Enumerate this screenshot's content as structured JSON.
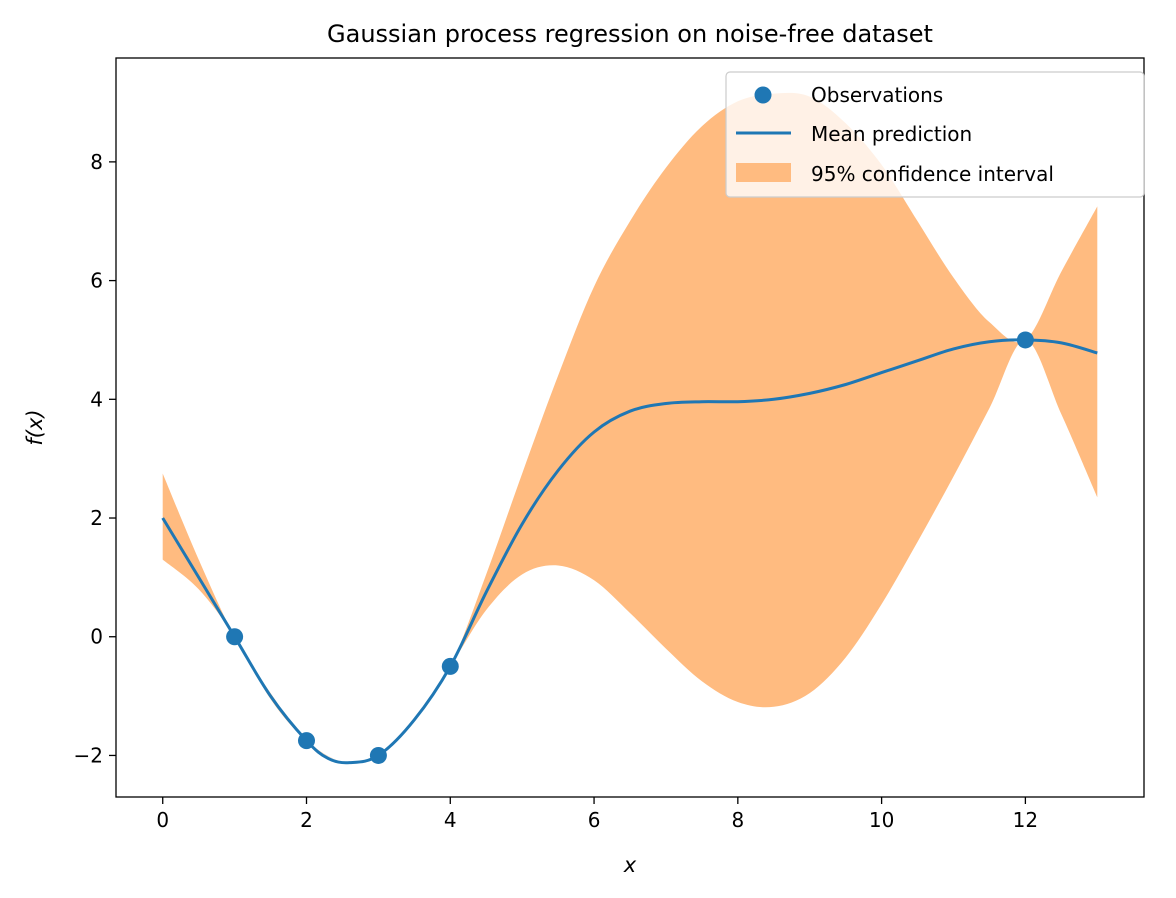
{
  "chart_data": {
    "type": "line",
    "title": "Gaussian process regression on noise-free dataset",
    "xlabel": "x",
    "ylabel": "f(x)",
    "xlim": [
      -0.65,
      13.65
    ],
    "ylim": [
      -2.7,
      9.75
    ],
    "x_ticks": [
      0,
      2,
      4,
      6,
      8,
      10,
      12
    ],
    "y_ticks": [
      -2,
      0,
      2,
      4,
      6,
      8
    ],
    "grid": false,
    "legend_position": "top-right",
    "colors": {
      "observations": "#1f77b4",
      "mean": "#1f77b4",
      "interval": "#ffbb80"
    },
    "series": [
      {
        "name": "Observations",
        "kind": "scatter",
        "x": [
          1,
          2,
          3,
          4,
          12
        ],
        "y": [
          0.0,
          -1.75,
          -2.0,
          -0.5,
          5.0
        ]
      },
      {
        "name": "Mean prediction",
        "kind": "line",
        "x": [
          0,
          0.5,
          1,
          1.5,
          2,
          2.3,
          2.6,
          3,
          3.5,
          4,
          4.5,
          5,
          5.5,
          6,
          6.5,
          7,
          7.5,
          8,
          8.5,
          9,
          9.5,
          10,
          10.5,
          11,
          11.5,
          12,
          12.5,
          13
        ],
        "y": [
          2.0,
          1.0,
          0.0,
          -1.0,
          -1.75,
          -2.05,
          -2.12,
          -2.0,
          -1.4,
          -0.5,
          0.75,
          1.9,
          2.8,
          3.45,
          3.8,
          3.93,
          3.96,
          3.96,
          4.0,
          4.1,
          4.25,
          4.45,
          4.65,
          4.85,
          4.97,
          5.0,
          4.95,
          4.78
        ]
      },
      {
        "name": "95% confidence interval",
        "kind": "band",
        "x": [
          0,
          0.5,
          1,
          1.5,
          2,
          2.5,
          3,
          3.5,
          4,
          4.5,
          5,
          5.5,
          6,
          6.5,
          7,
          7.5,
          8,
          8.5,
          9,
          9.5,
          10,
          10.5,
          11,
          11.5,
          12,
          12.5,
          13
        ],
        "lower": [
          1.3,
          0.8,
          0.0,
          -1.05,
          -1.75,
          -2.1,
          -2.0,
          -1.4,
          -0.5,
          0.45,
          1.05,
          1.2,
          0.95,
          0.4,
          -0.2,
          -0.75,
          -1.1,
          -1.18,
          -0.95,
          -0.35,
          0.55,
          1.6,
          2.7,
          3.85,
          5.0,
          3.75,
          2.35
        ],
        "upper": [
          2.75,
          1.3,
          0.0,
          -0.95,
          -1.75,
          -2.1,
          -2.0,
          -1.4,
          -0.5,
          1.05,
          2.75,
          4.4,
          5.9,
          7.0,
          7.9,
          8.6,
          9.02,
          9.15,
          9.1,
          8.65,
          7.95,
          7.0,
          6.05,
          5.3,
          5.0,
          6.15,
          7.25
        ]
      }
    ]
  }
}
